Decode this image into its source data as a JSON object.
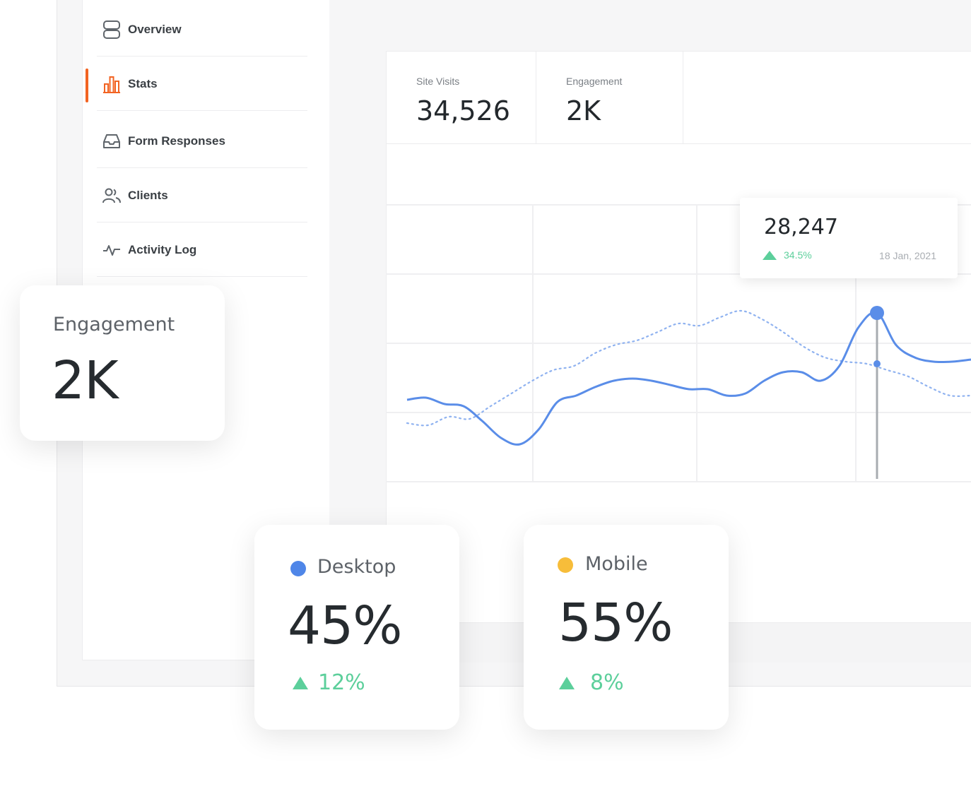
{
  "sidebar": {
    "items": [
      {
        "label": "Overview",
        "icon": "server-icon",
        "active": false
      },
      {
        "label": "Stats",
        "icon": "bar-chart-icon",
        "active": true
      },
      {
        "label": "Form Responses",
        "icon": "inbox-icon",
        "active": false
      },
      {
        "label": "Clients",
        "icon": "users-icon",
        "active": false
      },
      {
        "label": "Activity Log",
        "icon": "activity-icon",
        "active": false
      }
    ]
  },
  "stats": [
    {
      "label": "Site Visits",
      "value": "34,526"
    },
    {
      "label": "Engagement",
      "value": "2K"
    }
  ],
  "tooltip": {
    "value": "28,247",
    "change": "34.5%",
    "date": "18 Jan, 2021"
  },
  "cards": {
    "engagement": {
      "label": "Engagement",
      "value": "2K"
    },
    "desktop": {
      "label": "Desktop",
      "value": "45%",
      "change": "12%",
      "dot_color": "#4f86e8"
    },
    "mobile": {
      "label": "Mobile",
      "value": "55%",
      "change": "8%",
      "dot_color": "#f7bd3a"
    }
  },
  "colors": {
    "accent": "#f26322",
    "line": "#5a8de8",
    "positive": "#5ccf9b"
  },
  "chart_data": {
    "type": "line",
    "title": "",
    "xlabel": "",
    "ylabel": "",
    "grid": true,
    "series": [
      {
        "style": "solid",
        "values": [
          38,
          39,
          36,
          35,
          28,
          20,
          17,
          24,
          37,
          40,
          44,
          47,
          48,
          47,
          45,
          43,
          43,
          40,
          41,
          47,
          51,
          51,
          47,
          54,
          72,
          79,
          64,
          58,
          56,
          56,
          57
        ]
      },
      {
        "style": "dotted",
        "values": [
          27,
          26,
          30,
          29,
          35,
          41,
          47,
          52,
          54,
          60,
          64,
          66,
          70,
          74,
          73,
          77,
          80,
          76,
          70,
          63,
          58,
          56,
          55,
          52,
          49,
          44,
          40,
          40
        ]
      }
    ],
    "highlight": {
      "series": 0,
      "index": 25,
      "value": "28,247",
      "date": "18 Jan, 2021"
    }
  }
}
